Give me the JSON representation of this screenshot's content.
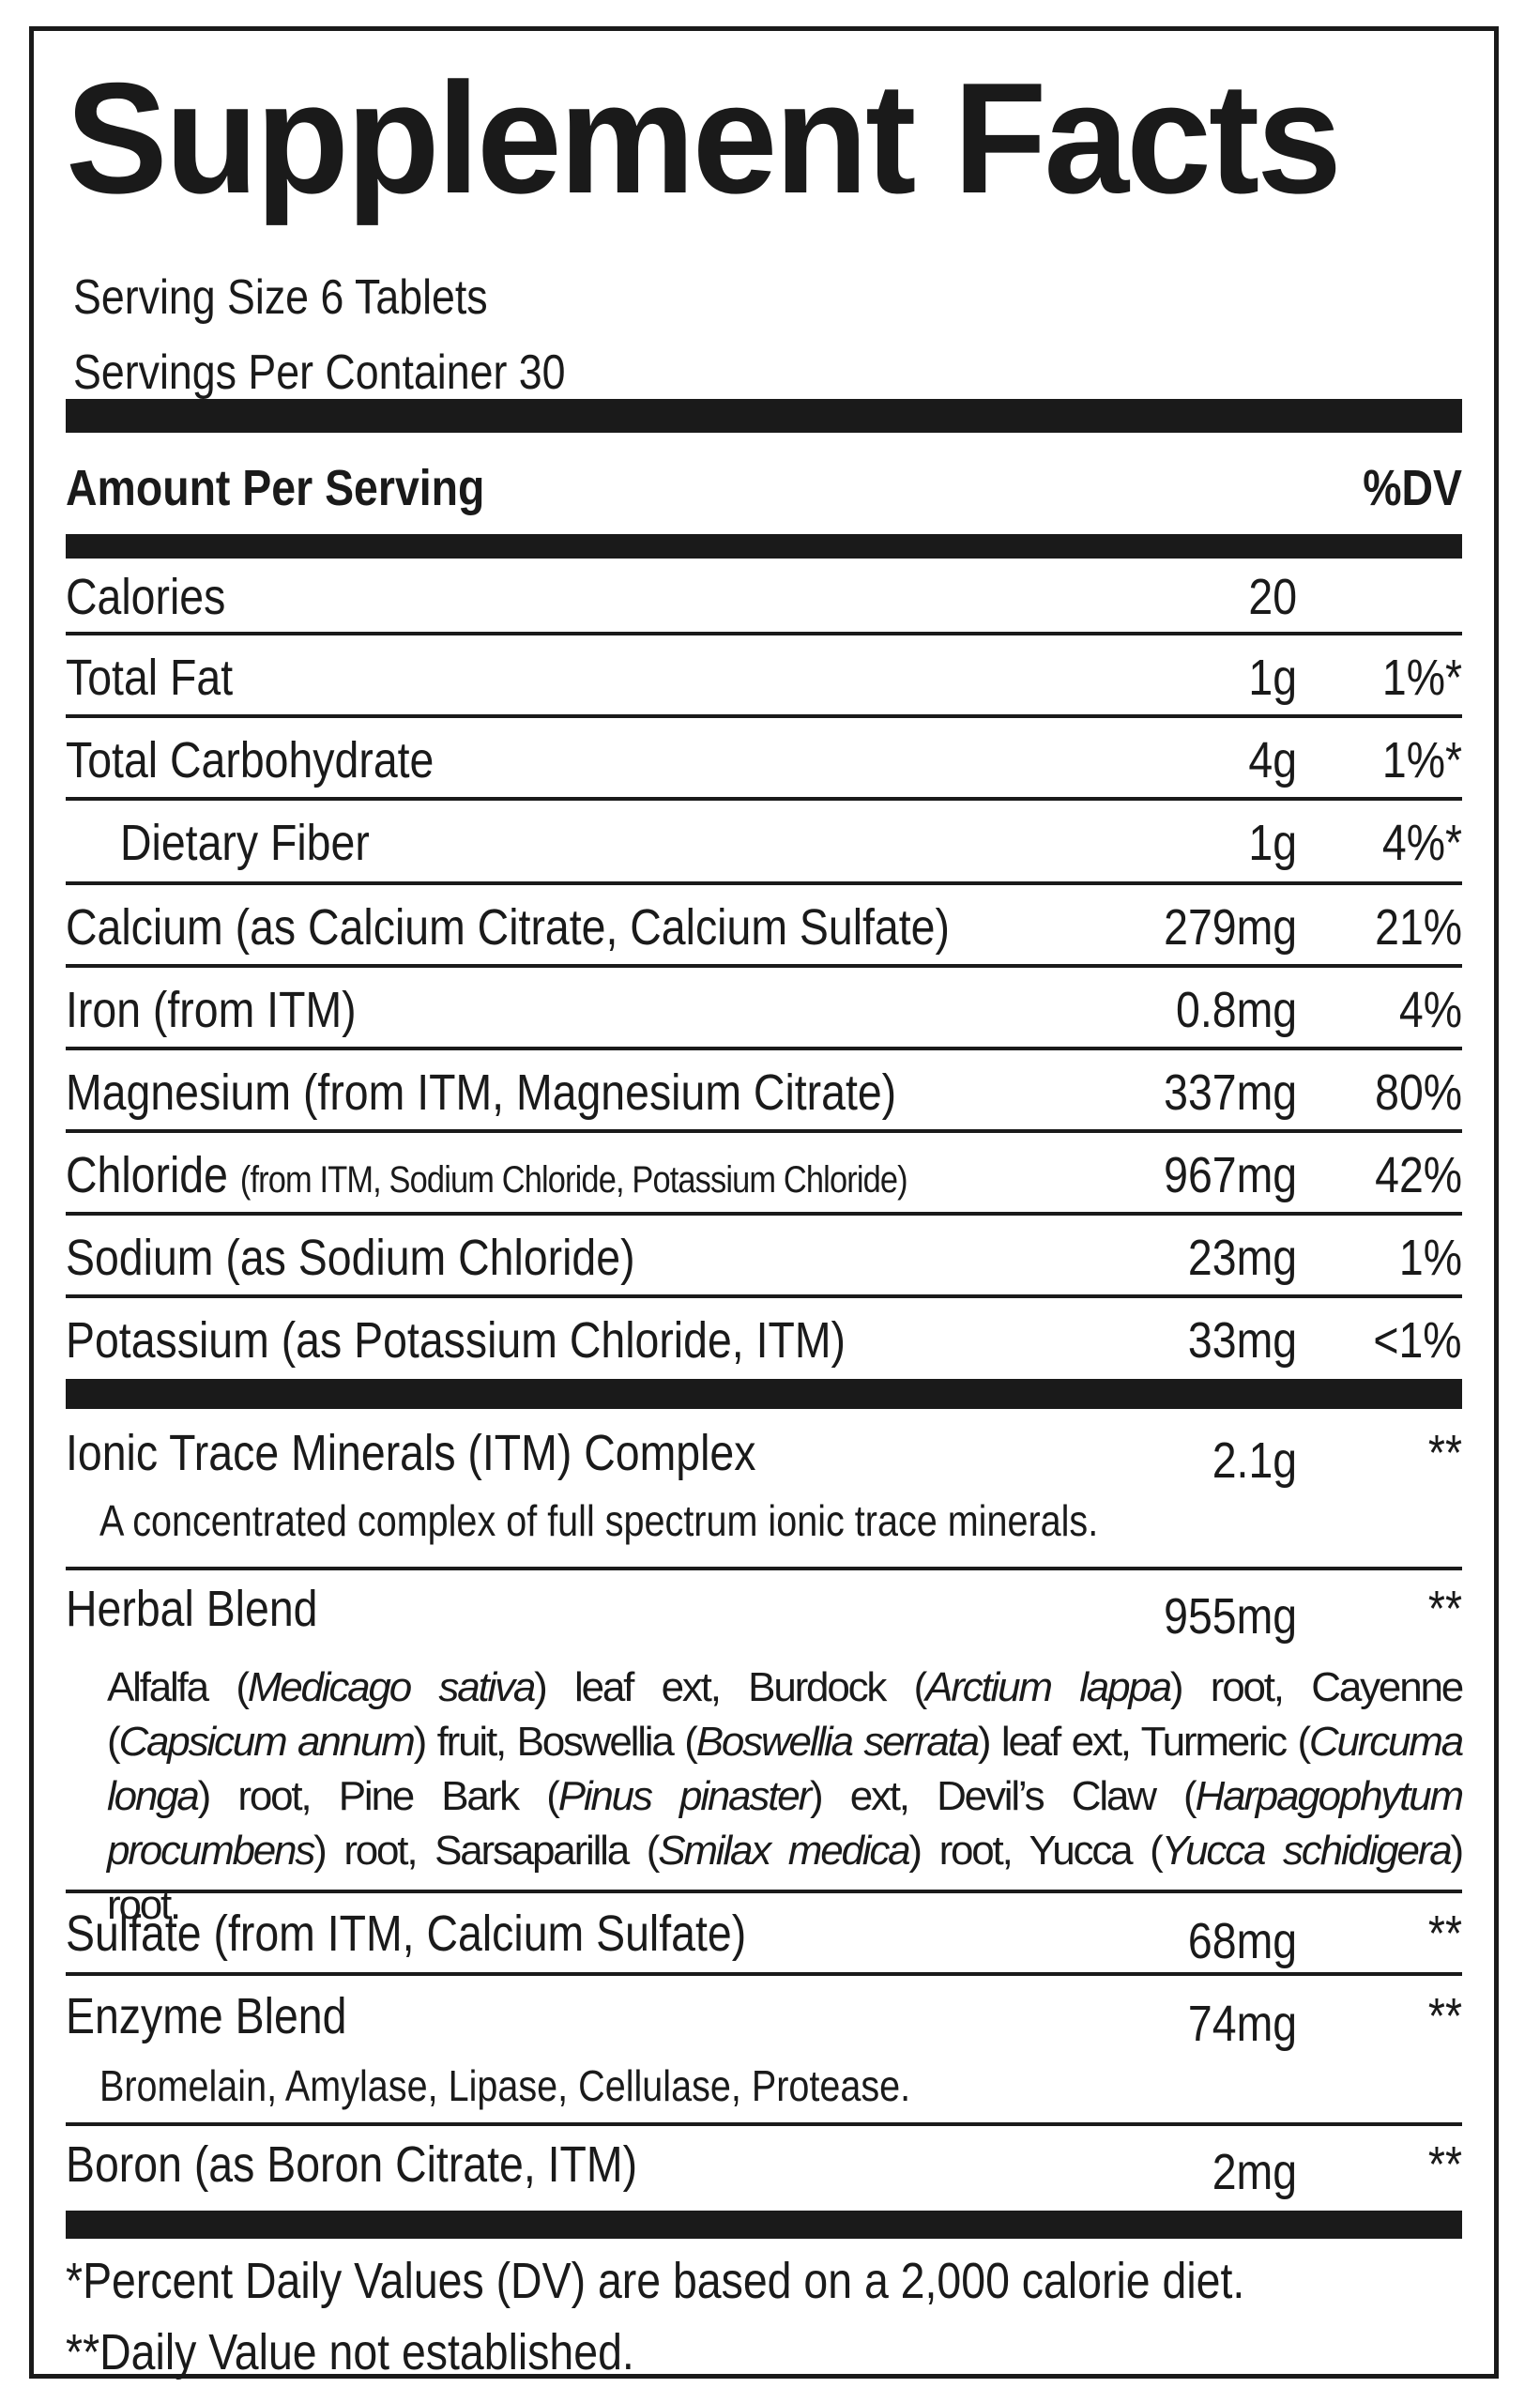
{
  "title": "Supplement Facts",
  "serving": {
    "size": "Serving Size 6 Tablets",
    "per_container": "Servings Per Container 30"
  },
  "header": {
    "amount": "Amount Per Serving",
    "dv": "%DV"
  },
  "nutrients": [
    {
      "name": "Calories",
      "sub": "",
      "amount": "20",
      "dv": ""
    },
    {
      "name": "Total Fat",
      "sub": "",
      "amount": "1g",
      "dv": "1%*"
    },
    {
      "name": "Total Carbohydrate",
      "sub": "",
      "amount": "4g",
      "dv": "1%*"
    },
    {
      "name": "Dietary Fiber",
      "sub": "",
      "amount": "1g",
      "dv": "4%*"
    },
    {
      "name": "Calcium (as Calcium Citrate, Calcium Sulfate)",
      "sub": "",
      "amount": "279mg",
      "dv": "21%"
    },
    {
      "name": "Iron (from ITM)",
      "sub": "",
      "amount": "0.8mg",
      "dv": "4%"
    },
    {
      "name": "Magnesium (from ITM, Magnesium Citrate)",
      "sub": "",
      "amount": "337mg",
      "dv": "80%"
    },
    {
      "name": "Chloride",
      "sub": "(from ITM, Sodium Chloride, Potassium Chloride)",
      "amount": "967mg",
      "dv": "42%"
    },
    {
      "name": "Sodium (as Sodium Chloride)",
      "sub": "",
      "amount": "23mg",
      "dv": "1%"
    },
    {
      "name": "Potassium (as Potassium Chloride, ITM)",
      "sub": "",
      "amount": "33mg",
      "dv": "<1%"
    }
  ],
  "blends": [
    {
      "name": "Ionic Trace Minerals (ITM) Complex",
      "amount": "2.1g",
      "dv": "**",
      "description": "A concentrated complex of full spectrum ionic trace minerals."
    },
    {
      "name": "Herbal Blend",
      "amount": "955mg",
      "dv": "**",
      "ingredients": [
        {
          "common": "Alfalfa (",
          "latin": "Medicago sativa",
          "part": ") leaf ext, "
        },
        {
          "common": "Burdock (",
          "latin": "Arctium lappa",
          "part": ") root, "
        },
        {
          "common": "Cayenne (",
          "latin": "Capsicum annum",
          "part": ") fruit, "
        },
        {
          "common": "Boswellia (",
          "latin": "Boswellia serrata",
          "part": ") leaf ext, "
        },
        {
          "common": "Turmeric (",
          "latin": "Curcuma longa",
          "part": ") root, "
        },
        {
          "common": "Pine Bark (",
          "latin": "Pinus pinaster",
          "part": ") ext, "
        },
        {
          "common": "Devil’s Claw (",
          "latin": "Harpagophytum procumbens",
          "part": ") root, "
        },
        {
          "common": "Sarsaparilla (",
          "latin": "Smilax medica",
          "part": ") root, "
        },
        {
          "common": "Yucca (",
          "latin": "Yucca schidigera",
          "part": ") root."
        }
      ]
    },
    {
      "name": "Sulfate (from ITM, Calcium Sulfate)",
      "amount": "68mg",
      "dv": "**"
    },
    {
      "name": "Enzyme Blend",
      "amount": "74mg",
      "dv": "**",
      "description": "Bromelain, Amylase, Lipase, Cellulase, Protease."
    },
    {
      "name": "Boron (as Boron Citrate, ITM)",
      "amount": "2mg",
      "dv": "**"
    }
  ],
  "footnotes": {
    "dv_note": "*Percent Daily Values (DV) are based on a 2,000 calorie diet.",
    "not_established": "**Daily Value not established."
  }
}
